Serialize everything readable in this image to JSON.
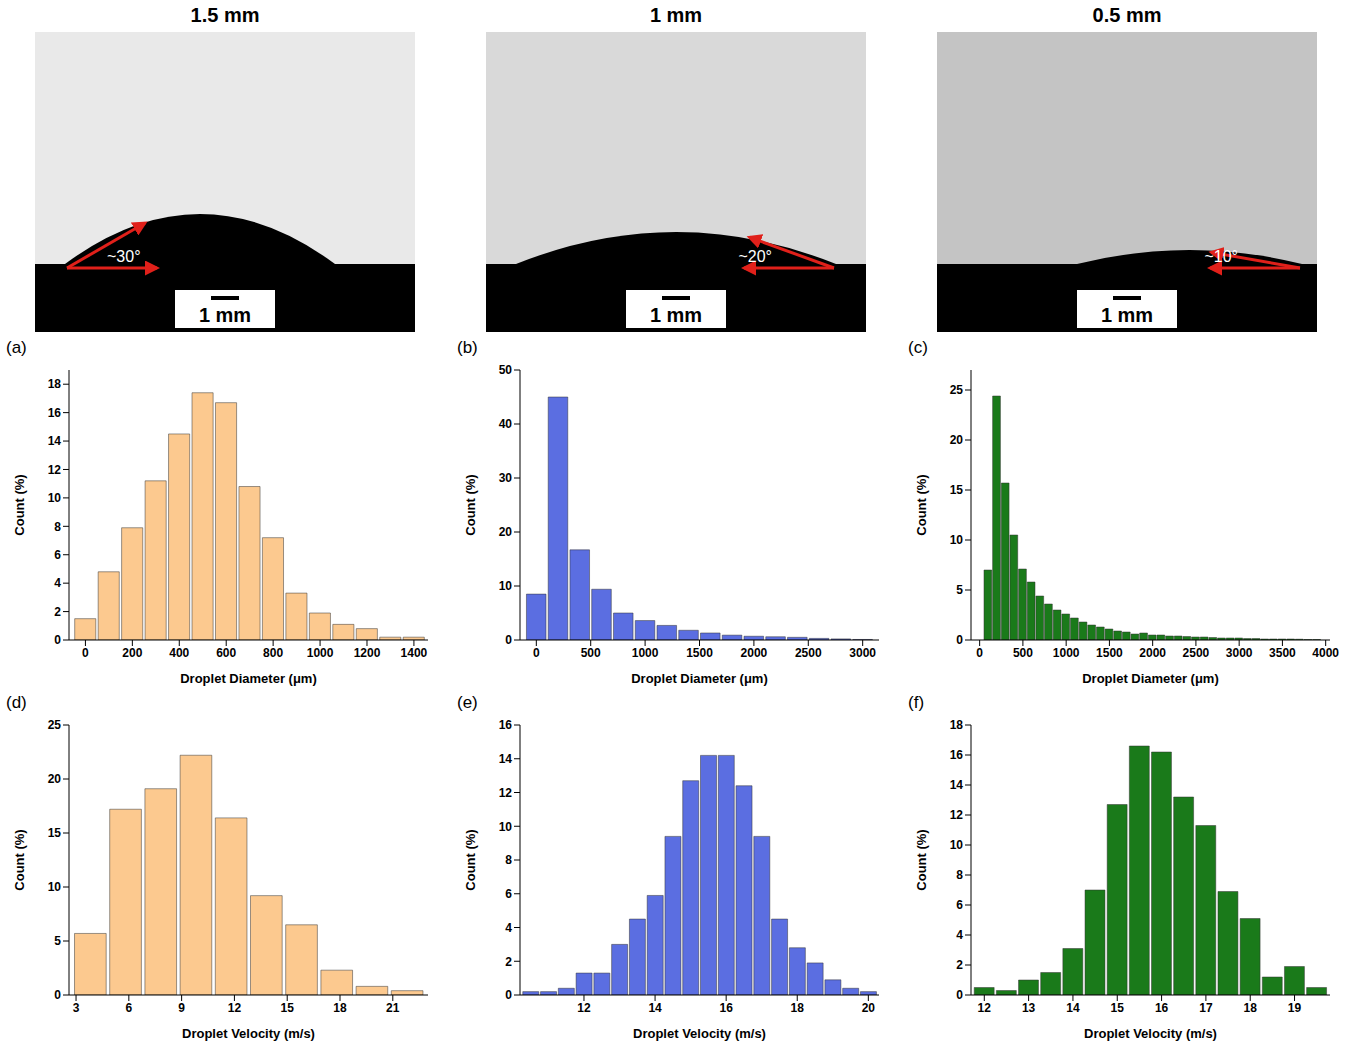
{
  "images": [
    {
      "title": "1.5 mm",
      "angle_label": "~30°",
      "scale_bar": "1 mm"
    },
    {
      "title": "1 mm",
      "angle_label": "~20°",
      "scale_bar": "1 mm"
    },
    {
      "title": "0.5 mm",
      "angle_label": "~10°",
      "scale_bar": "1 mm"
    }
  ],
  "chart_data": [
    {
      "panel": "(a)",
      "type": "histogram",
      "color": "#fcc98f",
      "x_label": "Droplet Diameter (μm)",
      "y_label": "Count (%)",
      "bins": [
        -50,
        50,
        150,
        250,
        350,
        450,
        550,
        650,
        750,
        850,
        950,
        1050,
        1150,
        1250,
        1350,
        1450
      ],
      "values": [
        1.5,
        4.8,
        7.9,
        11.2,
        14.5,
        17.4,
        16.7,
        10.8,
        7.2,
        3.3,
        1.9,
        1.1,
        0.8,
        0.2,
        0.2
      ],
      "xlim": [
        -70,
        1460
      ],
      "xticks": [
        0,
        200,
        400,
        600,
        800,
        1000,
        1200,
        1400
      ],
      "ylim": [
        0,
        19
      ],
      "yticks": [
        0,
        2,
        4,
        6,
        8,
        10,
        12,
        14,
        16,
        18
      ]
    },
    {
      "panel": "(b)",
      "type": "histogram",
      "color": "#5b6ee1",
      "x_label": "Droplet Diameter (μm)",
      "y_label": "Count (%)",
      "bins": [
        -100,
        100,
        300,
        500,
        700,
        900,
        1100,
        1300,
        1500,
        1700,
        1900,
        2100,
        2300,
        2500,
        2700,
        2900,
        3100
      ],
      "values": [
        8.5,
        45,
        16.7,
        9.4,
        5.0,
        3.6,
        2.7,
        1.8,
        1.3,
        0.9,
        0.7,
        0.6,
        0.5,
        0.3,
        0.2,
        0.1
      ],
      "xlim": [
        -150,
        3150
      ],
      "xticks": [
        0,
        500,
        1000,
        1500,
        2000,
        2500,
        3000
      ],
      "ylim": [
        0,
        50
      ],
      "yticks": [
        0,
        10,
        20,
        30,
        40,
        50
      ]
    },
    {
      "panel": "(c)",
      "type": "histogram",
      "color": "#1a7a1a",
      "x_label": "Droplet Diameter (μm)",
      "y_label": "Count (%)",
      "bins": [
        50,
        150,
        250,
        350,
        450,
        550,
        650,
        750,
        850,
        950,
        1050,
        1150,
        1250,
        1350,
        1450,
        1550,
        1650,
        1750,
        1850,
        1950,
        2050,
        2150,
        2250,
        2350,
        2450,
        2550,
        2650,
        2750,
        2850,
        2950,
        3050,
        3150,
        3250,
        3350,
        3450,
        3550,
        3650,
        3750,
        3850,
        3950
      ],
      "values": [
        7.0,
        24.4,
        15.7,
        10.5,
        7.1,
        5.8,
        4.4,
        3.6,
        3.0,
        2.6,
        2.2,
        1.8,
        1.5,
        1.3,
        1.1,
        0.9,
        0.8,
        0.6,
        0.7,
        0.5,
        0.5,
        0.4,
        0.4,
        0.35,
        0.3,
        0.3,
        0.25,
        0.2,
        0.2,
        0.2,
        0.15,
        0.15,
        0.1,
        0.1,
        0.1,
        0.1,
        0.08,
        0.05,
        0.05
      ],
      "xlim": [
        -100,
        4050
      ],
      "xticks": [
        0,
        500,
        1000,
        1500,
        2000,
        2500,
        3000,
        3500,
        4000
      ],
      "ylim": [
        0,
        27
      ],
      "yticks": [
        0,
        5,
        10,
        15,
        20,
        25
      ]
    },
    {
      "panel": "(d)",
      "type": "histogram",
      "color": "#fcc98f",
      "x_label": "Droplet Velocity (m/s)",
      "y_label": "Count (%)",
      "bins": [
        2.8,
        4.8,
        6.8,
        8.8,
        10.8,
        12.8,
        14.8,
        16.8,
        18.8,
        20.8,
        22.8
      ],
      "values": [
        5.7,
        17.2,
        19.1,
        22.2,
        16.4,
        9.2,
        6.5,
        2.3,
        0.8,
        0.4
      ],
      "xlim": [
        2.6,
        23
      ],
      "xticks": [
        3,
        6,
        9,
        12,
        15,
        18,
        21
      ],
      "ylim": [
        0,
        25
      ],
      "yticks": [
        0,
        5,
        10,
        15,
        20,
        25
      ]
    },
    {
      "panel": "(e)",
      "type": "histogram",
      "color": "#5b6ee1",
      "x_label": "Droplet Velocity (m/s)",
      "y_label": "Count (%)",
      "bins": [
        10.25,
        10.75,
        11.25,
        11.75,
        12.25,
        12.75,
        13.25,
        13.75,
        14.25,
        14.75,
        15.25,
        15.75,
        16.25,
        16.75,
        17.25,
        17.75,
        18.25,
        18.75,
        19.25,
        19.75,
        20.25
      ],
      "values": [
        0.2,
        0.2,
        0.4,
        1.3,
        1.3,
        3.0,
        4.5,
        5.9,
        9.4,
        12.7,
        14.2,
        14.2,
        12.4,
        9.4,
        4.5,
        2.8,
        1.9,
        0.9,
        0.4,
        0.2
      ],
      "xlim": [
        10.2,
        20.3
      ],
      "xticks": [
        12,
        14,
        16,
        18,
        20
      ],
      "ylim": [
        0,
        16
      ],
      "yticks": [
        0,
        2,
        4,
        6,
        8,
        10,
        12,
        14,
        16
      ]
    },
    {
      "panel": "(f)",
      "type": "histogram",
      "color": "#1a7a1a",
      "x_label": "Droplet Velocity (m/s)",
      "y_label": "Count (%)",
      "bins": [
        11.75,
        12.25,
        12.75,
        13.25,
        13.75,
        14.25,
        14.75,
        15.25,
        15.75,
        16.25,
        16.75,
        17.25,
        17.75,
        18.25,
        18.75,
        19.25,
        19.75
      ],
      "values": [
        0.5,
        0.3,
        1.0,
        1.5,
        3.1,
        7.0,
        12.7,
        16.6,
        16.2,
        13.2,
        11.3,
        6.9,
        5.1,
        1.2,
        1.9,
        0.5
      ],
      "xlim": [
        11.7,
        19.8
      ],
      "xticks": [
        12,
        13,
        14,
        15,
        16,
        17,
        18,
        19
      ],
      "ylim": [
        0,
        18
      ],
      "yticks": [
        0,
        2,
        4,
        6,
        8,
        10,
        12,
        14,
        16,
        18
      ]
    }
  ]
}
